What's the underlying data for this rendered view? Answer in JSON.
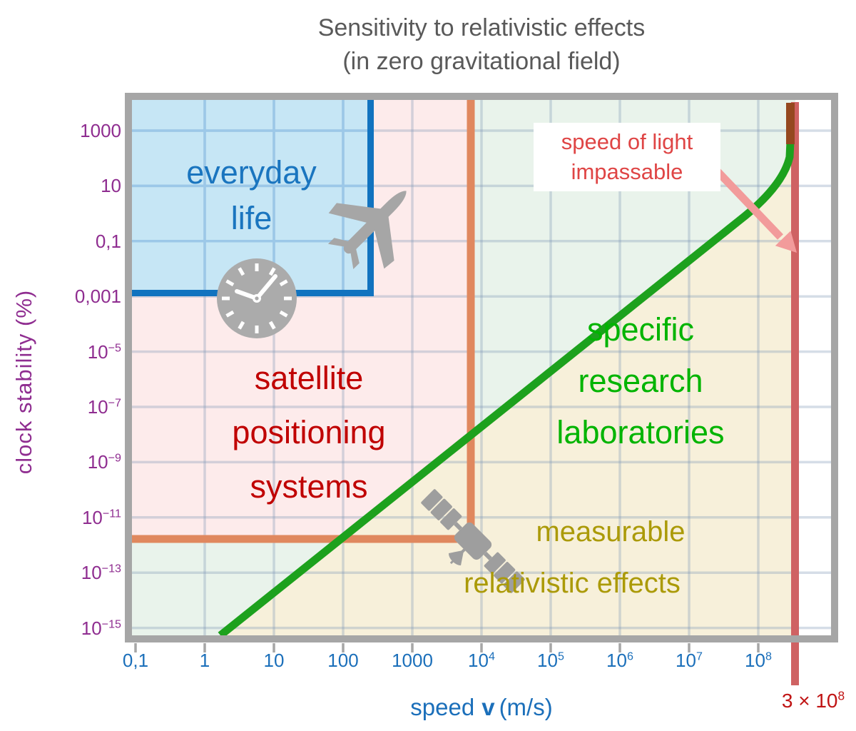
{
  "title": {
    "line1": "Sensitivity to relativistic effects",
    "line2": "(in zero gravitational field)"
  },
  "axes": {
    "y_label": "clock stability  (%)",
    "x_label": {
      "prefix": "speed",
      "var": "v",
      "unit": "(m/s)"
    },
    "y_ticks": [
      {
        "t": "1000"
      },
      {
        "t": "10"
      },
      {
        "t": "0,1"
      },
      {
        "t": "0,001"
      },
      {
        "t": "10",
        "sup": "−5"
      },
      {
        "t": "10",
        "sup": "−7"
      },
      {
        "t": "10",
        "sup": "−9"
      },
      {
        "t": "10",
        "sup": "−11"
      },
      {
        "t": "10",
        "sup": "−13"
      },
      {
        "t": "10",
        "sup": "−15"
      }
    ],
    "x_ticks": [
      {
        "t": "0,1"
      },
      {
        "t": "1"
      },
      {
        "t": "10"
      },
      {
        "t": "100"
      },
      {
        "t": "1000"
      },
      {
        "t": "10",
        "sup": "4"
      },
      {
        "t": "10",
        "sup": "5"
      },
      {
        "t": "10",
        "sup": "6"
      },
      {
        "t": "10",
        "sup": "7"
      },
      {
        "t": "10",
        "sup": "8"
      }
    ],
    "sol_tick": {
      "t": "3 × 10",
      "sup": "8"
    }
  },
  "regions": {
    "everyday_life": {
      "lines": [
        "everyday",
        "life"
      ]
    },
    "satellite": {
      "lines": [
        "satellite",
        "positioning",
        "systems"
      ]
    },
    "research": {
      "lines": [
        "specific",
        "research",
        "laboratories"
      ]
    },
    "measurable": {
      "lines": [
        "measurable",
        "relativistic effects"
      ]
    }
  },
  "annotations": {
    "sol": {
      "line1": "speed of light",
      "line2": "impassable"
    }
  },
  "icons": [
    "airplane-icon",
    "clock-icon",
    "satellite-icon",
    "speed-of-light-arrow-icon"
  ],
  "colors": {
    "title": "#595959",
    "frame": "#a6a6a6",
    "y_axis": "#8f2d90",
    "x_axis": "#1b6fba",
    "everyday_fill": "#c6e6f5",
    "everyday_border": "#1173bf",
    "everyday_text": "#1a75bf",
    "satellite_fill": "#fdebeb",
    "satellite_text": "#c00000",
    "research_fill": "#e9f3eb",
    "research_text": "#00b400",
    "measurable_fill": "#f7f0da",
    "measurable_text": "#ab9a08",
    "orange_boundary": "#e0885e",
    "green_line": "#1da11d",
    "brown_asymptote": "#95481f",
    "light_speed_line": "#cf6263",
    "arrow": "#f29b9b",
    "sol_text": "#df4545",
    "sol_tick": "#c01414",
    "icon_gray": "#a6a6a6"
  },
  "chart_data": {
    "type": "area",
    "title": "Sensitivity to relativistic effects (in zero gravitational field)",
    "xlabel": "speed v (m/s)",
    "ylabel": "clock stability (%)",
    "x_scale": "log",
    "y_scale": "log",
    "x_tick_values": [
      0.1,
      1,
      10,
      100,
      1000,
      10000.0,
      100000.0,
      1000000.0,
      10000000.0,
      100000000.0
    ],
    "y_tick_values": [
      1000,
      10,
      0.1,
      0.001,
      1e-05,
      1e-07,
      1e-09,
      1e-11,
      1e-13,
      1e-15
    ],
    "grid": true,
    "legend_position": "none",
    "regions": [
      {
        "name": "everyday life",
        "x_max": 250,
        "y_min": 0.001,
        "fill": "#c6e6f5"
      },
      {
        "name": "satellite positioning systems",
        "x_max": 6000,
        "y_min": 3e-12,
        "fill": "#fdebeb"
      },
      {
        "name": "specific research laboratories",
        "location": "above relativistic-effects line",
        "fill": "#e9f3eb"
      },
      {
        "name": "measurable relativistic effects",
        "location": "below relativistic-effects line",
        "fill": "#f7f0da"
      },
      {
        "name": "beyond speed of light",
        "x_min": 300000000.0,
        "fill": "#ffffff"
      }
    ],
    "lines": [
      {
        "name": "relativistic effects threshold",
        "color": "#1da11d",
        "shape": "log-log slope 2 (effect ∝ v²)",
        "points_x": [
          1.5,
          10000.0,
          1000000.0,
          100000000.0,
          300000000.0
        ],
        "points_y": [
          1e-15,
          3e-08,
          0.0003,
          3,
          1000
        ],
        "note": "rises asymptotically (brown) along the speed-of-light line near v = 3×10⁸"
      },
      {
        "name": "speed of light impassable",
        "x": 300000000.0,
        "color": "#cf6263",
        "vertical": true
      }
    ]
  }
}
